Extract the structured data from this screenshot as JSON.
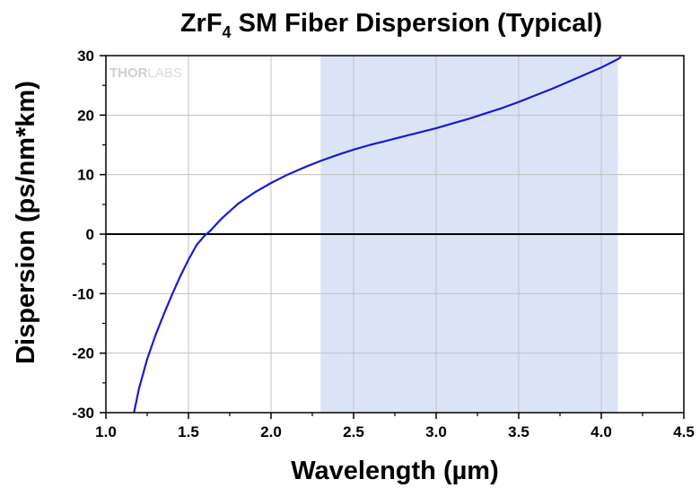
{
  "chart_data": {
    "type": "line",
    "title": {
      "prefix": "ZrF",
      "subscript": "4",
      "suffix": " SM Fiber Dispersion (Typical)"
    },
    "xlabel": "Wavelength (µm)",
    "ylabel": "Dispersion (ps/nm*km)",
    "xlim": [
      1.0,
      4.5
    ],
    "ylim": [
      -30,
      30
    ],
    "x_ticks": [
      1.0,
      1.5,
      2.0,
      2.5,
      3.0,
      3.5,
      4.0,
      4.5
    ],
    "x_tick_labels": [
      "1.0",
      "1.5",
      "2.0",
      "2.5",
      "3.0",
      "3.5",
      "4.0",
      "4.5"
    ],
    "y_ticks": [
      -30,
      -20,
      -10,
      0,
      10,
      20,
      30
    ],
    "y_tick_labels": [
      "-30",
      "-20",
      "-10",
      "0",
      "10",
      "20",
      "30"
    ],
    "grid": true,
    "zero_line": 0,
    "highlight_band": {
      "x": [
        2.3,
        4.1
      ],
      "color": "#dbe4f6"
    },
    "series": [
      {
        "color": "#1a1ad0",
        "x": [
          1.17,
          1.2,
          1.25,
          1.3,
          1.35,
          1.4,
          1.45,
          1.5,
          1.55,
          1.6,
          1.63,
          1.7,
          1.8,
          1.9,
          2.0,
          2.1,
          2.2,
          2.3,
          2.4,
          2.5,
          2.6,
          2.7,
          2.8,
          2.9,
          3.0,
          3.1,
          3.2,
          3.3,
          3.4,
          3.5,
          3.6,
          3.7,
          3.8,
          3.9,
          4.0,
          4.1,
          4.12
        ],
        "y": [
          -30,
          -26,
          -21,
          -17,
          -13.5,
          -10.2,
          -7.1,
          -4.3,
          -1.8,
          -0.2,
          0.5,
          2.6,
          5.1,
          7.0,
          8.6,
          10.0,
          11.2,
          12.3,
          13.3,
          14.2,
          15.0,
          15.7,
          16.4,
          17.1,
          17.8,
          18.6,
          19.4,
          20.3,
          21.2,
          22.2,
          23.3,
          24.4,
          25.6,
          26.8,
          28.0,
          29.4,
          29.8
        ]
      }
    ]
  },
  "watermark": {
    "thor": "THOR",
    "labs": "LABS"
  },
  "colors": {
    "background": "#ffffff",
    "grid": "#c0c0c0",
    "axis": "#000000"
  }
}
